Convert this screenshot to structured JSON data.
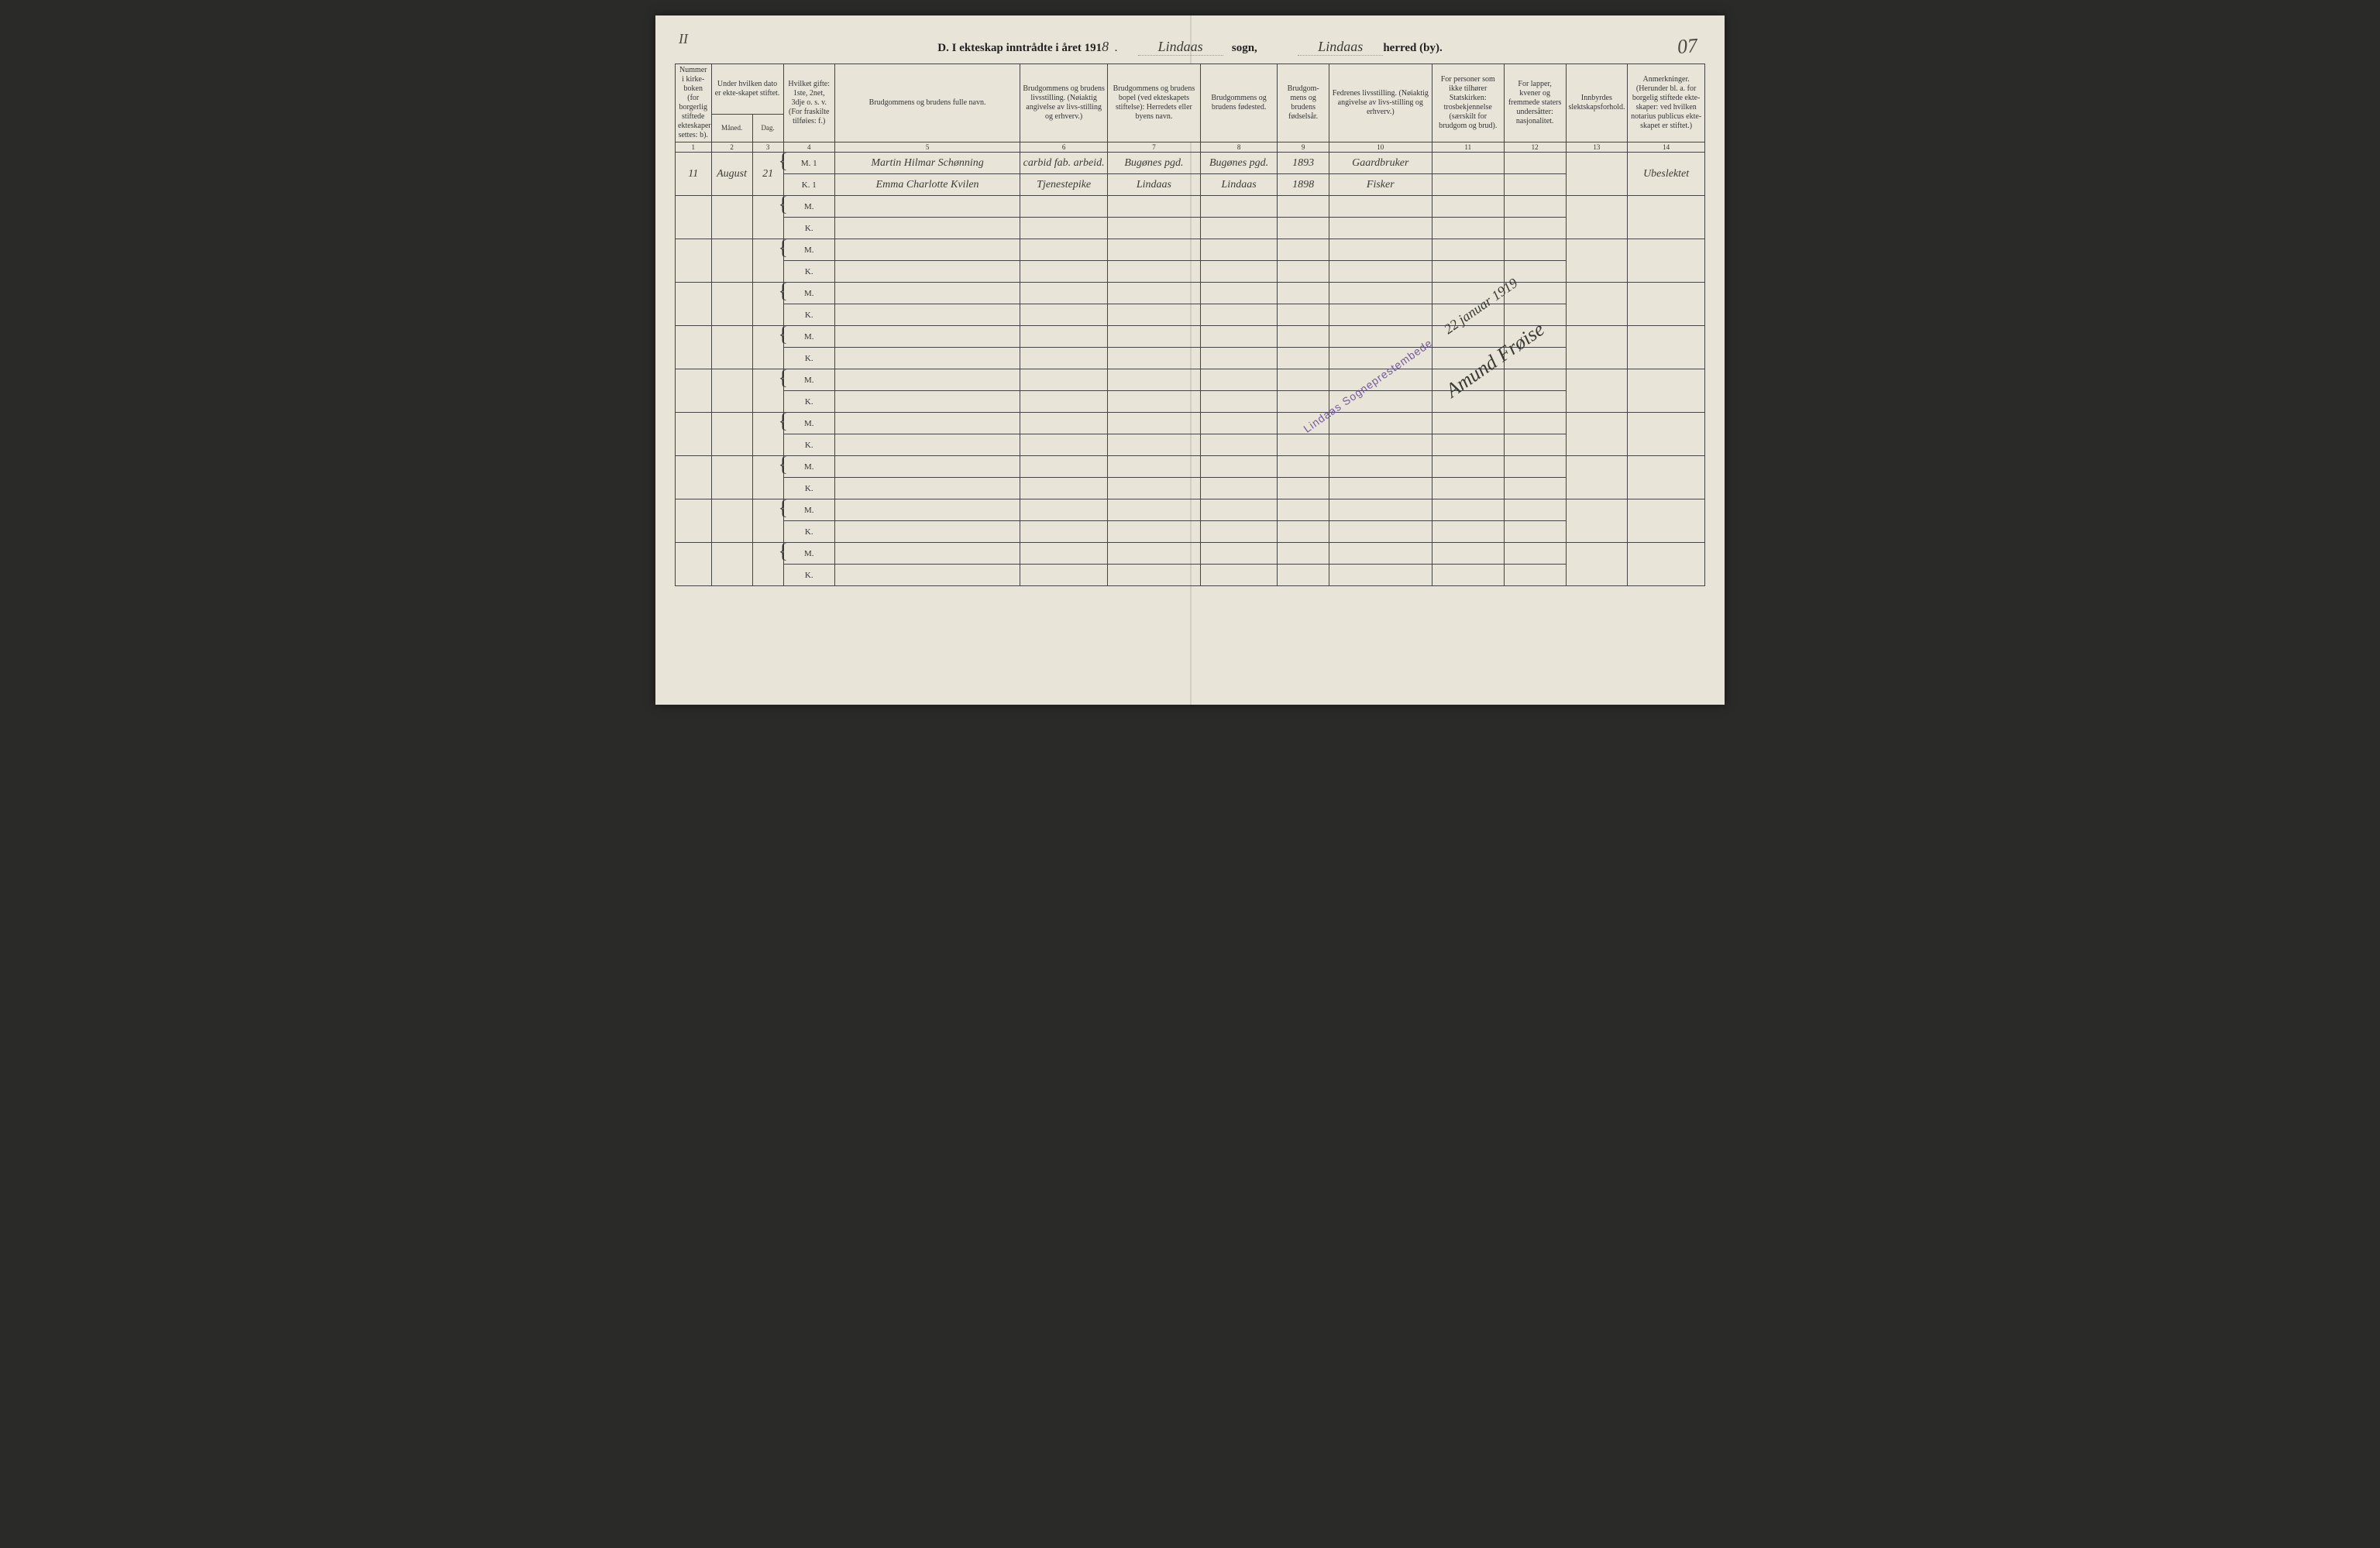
{
  "page": {
    "left_margin_mark": "II",
    "right_margin_mark": "07",
    "background_color": "#e8e5d8",
    "border_color": "#444444"
  },
  "title": {
    "section_letter": "D.",
    "prefix": "I ekteskap inntrådte i året 191",
    "year_last_digit": "8",
    "sogn_handwritten": "Lindaas",
    "sogn_label": "sogn,",
    "herred_handwritten": "Lindaas",
    "herred_label": "herred (by)."
  },
  "columns": {
    "widths_pct": [
      3.5,
      4,
      3,
      5,
      18,
      8.5,
      9,
      7.5,
      5,
      10,
      7,
      6,
      6,
      7.5
    ],
    "headers": [
      "Nummer i kirke-boken (for borgerlig stiftede ekteskaper settes: b).",
      "Under hvilken dato er ekte-skapet stiftet.",
      "",
      "Hvilket gifte: 1ste, 2net, 3dje o. s. v. (For fraskilte tilføies: f.)",
      "Brudgommens og brudens fulle navn.",
      "Brudgommens og brudens livsstilling. (Nøiaktig angivelse av livs-stilling og erhverv.)",
      "Brudgommens og brudens bopel (ved ekteskapets stiftelse): Herredets eller byens navn.",
      "Brudgommens og brudens fødested.",
      "Brudgom-mens og brudens fødselsår.",
      "Fedrenes livsstilling. (Nøiaktig angivelse av livs-stilling og erhverv.)",
      "For personer som ikke tilhører Statskirken: trosbekjennelse (særskilt for brudgom og brud).",
      "For lapper, kvener og fremmede staters undersåtter: nasjonalitet.",
      "Innbyrdes slektskapsforhold.",
      "Anmerkninger. (Herunder bl. a. for borgelig stiftede ekte-skaper: ved hvilken notarius publicus ekte-skapet er stiftet.)"
    ],
    "sub_date": {
      "maaned": "Måned.",
      "dag": "Dag."
    },
    "numbers": [
      "1",
      "2",
      "3",
      "4",
      "5",
      "6",
      "7",
      "8",
      "9",
      "10",
      "11",
      "12",
      "13",
      "14"
    ]
  },
  "entries": [
    {
      "num": "11",
      "maaned": "August",
      "dag": "21",
      "groom": {
        "mk": "M.",
        "gifte": "1",
        "name": "Martin Hilmar Schønning",
        "livsstilling": "carbid fab. arbeid.",
        "bopel": "Bugønes pgd.",
        "fodested": "Bugønes pgd.",
        "fodselsaar": "1893",
        "fedrenes": "Gaardbruker",
        "tros": "",
        "nasj": "",
        "slekt": "",
        "anm": "Ubeslektet"
      },
      "bride": {
        "mk": "K.",
        "gifte": "1",
        "name": "Emma Charlotte Kvilen",
        "livsstilling": "Tjenestepike",
        "bopel": "Lindaas",
        "fodested": "Lindaas",
        "fodselsaar": "1898",
        "fedrenes": "Fisker",
        "tros": "",
        "nasj": "",
        "slekt": "",
        "anm": ""
      }
    }
  ],
  "blank_row_pairs": 9,
  "stamp": {
    "text": "Lindaas Sogneprestembede",
    "color": "#6a4a9a",
    "rotation_deg": -35
  },
  "attestation": {
    "date_text": "22 januar 1919",
    "signature": "Amund Frøise"
  }
}
